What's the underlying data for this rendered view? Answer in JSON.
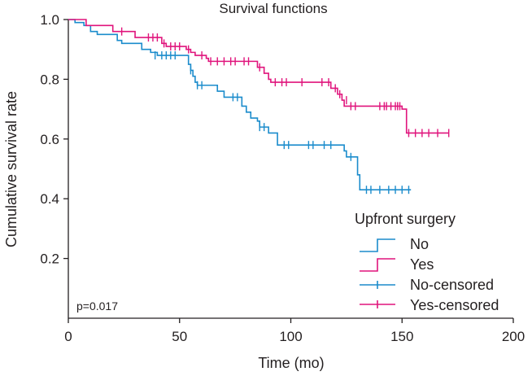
{
  "chart_data": {
    "type": "line",
    "title": "Survival functions",
    "xlabel": "Time (mo)",
    "ylabel": "Cumulative survival rate",
    "xlim": [
      0,
      200
    ],
    "ylim": [
      0,
      1.0
    ],
    "xticks": [
      0,
      50,
      100,
      150,
      200
    ],
    "xtick_labels": [
      "0",
      "50",
      "100",
      "150",
      "200"
    ],
    "yticks": [
      0.2,
      0.4,
      0.6,
      0.8,
      1.0
    ],
    "ytick_labels": [
      "0.2",
      "0.4",
      "0.6",
      "0.8",
      "1.0"
    ],
    "annotation": "p=0.017",
    "legend": {
      "title": "Upfront surgery",
      "position": "bottom-right",
      "entries": [
        "No",
        "Yes",
        "No-censored",
        "Yes-censored"
      ]
    },
    "colors": {
      "no": "#1b8ccc",
      "yes": "#e0147c",
      "axis": "#231f20"
    },
    "series": [
      {
        "name": "No",
        "steps": [
          [
            0,
            1.0
          ],
          [
            3,
            0.99
          ],
          [
            7,
            0.98
          ],
          [
            10,
            0.96
          ],
          [
            13,
            0.95
          ],
          [
            22,
            0.93
          ],
          [
            24,
            0.92
          ],
          [
            33,
            0.9
          ],
          [
            37,
            0.89
          ],
          [
            40,
            0.88
          ],
          [
            54,
            0.85
          ],
          [
            55,
            0.83
          ],
          [
            56,
            0.81
          ],
          [
            57,
            0.79
          ],
          [
            58,
            0.78
          ],
          [
            67,
            0.76
          ],
          [
            70,
            0.74
          ],
          [
            78,
            0.71
          ],
          [
            80,
            0.69
          ],
          [
            82,
            0.67
          ],
          [
            85,
            0.66
          ],
          [
            86,
            0.64
          ],
          [
            90,
            0.62
          ],
          [
            94,
            0.58
          ],
          [
            124,
            0.56
          ],
          [
            125,
            0.54
          ],
          [
            130,
            0.48
          ],
          [
            131,
            0.43
          ],
          [
            154,
            0.43
          ]
        ],
        "censored": [
          [
            39,
            0.88
          ],
          [
            42,
            0.88
          ],
          [
            44,
            0.88
          ],
          [
            46,
            0.88
          ],
          [
            48,
            0.88
          ],
          [
            55,
            0.83
          ],
          [
            58,
            0.78
          ],
          [
            60,
            0.78
          ],
          [
            74,
            0.74
          ],
          [
            76,
            0.74
          ],
          [
            86,
            0.64
          ],
          [
            88,
            0.64
          ],
          [
            97,
            0.58
          ],
          [
            99,
            0.58
          ],
          [
            108,
            0.58
          ],
          [
            110,
            0.58
          ],
          [
            115,
            0.58
          ],
          [
            118,
            0.58
          ],
          [
            127,
            0.54
          ],
          [
            134,
            0.43
          ],
          [
            136,
            0.43
          ],
          [
            140,
            0.43
          ],
          [
            144,
            0.43
          ],
          [
            147,
            0.43
          ],
          [
            150,
            0.43
          ],
          [
            153,
            0.43
          ]
        ]
      },
      {
        "name": "Yes",
        "steps": [
          [
            0,
            1.0
          ],
          [
            8,
            0.98
          ],
          [
            20,
            0.96
          ],
          [
            30,
            0.94
          ],
          [
            42,
            0.92
          ],
          [
            44,
            0.91
          ],
          [
            53,
            0.9
          ],
          [
            55,
            0.89
          ],
          [
            57,
            0.88
          ],
          [
            62,
            0.87
          ],
          [
            63,
            0.86
          ],
          [
            85,
            0.84
          ],
          [
            88,
            0.82
          ],
          [
            90,
            0.8
          ],
          [
            91,
            0.79
          ],
          [
            118,
            0.77
          ],
          [
            121,
            0.75
          ],
          [
            123,
            0.73
          ],
          [
            124,
            0.71
          ],
          [
            150,
            0.7
          ],
          [
            152,
            0.62
          ],
          [
            171,
            0.62
          ]
        ],
        "censored": [
          [
            24,
            0.96
          ],
          [
            36,
            0.94
          ],
          [
            38,
            0.94
          ],
          [
            40,
            0.94
          ],
          [
            43,
            0.92
          ],
          [
            46,
            0.91
          ],
          [
            48,
            0.91
          ],
          [
            50,
            0.91
          ],
          [
            54,
            0.9
          ],
          [
            60,
            0.88
          ],
          [
            64,
            0.86
          ],
          [
            67,
            0.86
          ],
          [
            70,
            0.86
          ],
          [
            73,
            0.86
          ],
          [
            75,
            0.86
          ],
          [
            79,
            0.86
          ],
          [
            81,
            0.86
          ],
          [
            86,
            0.84
          ],
          [
            93,
            0.79
          ],
          [
            96,
            0.79
          ],
          [
            98,
            0.79
          ],
          [
            105,
            0.79
          ],
          [
            114,
            0.79
          ],
          [
            117,
            0.79
          ],
          [
            120,
            0.77
          ],
          [
            122,
            0.75
          ],
          [
            125,
            0.73
          ],
          [
            127,
            0.71
          ],
          [
            129,
            0.71
          ],
          [
            140,
            0.71
          ],
          [
            142,
            0.71
          ],
          [
            143,
            0.71
          ],
          [
            145,
            0.71
          ],
          [
            147,
            0.71
          ],
          [
            148,
            0.71
          ],
          [
            149,
            0.71
          ],
          [
            153,
            0.62
          ],
          [
            156,
            0.62
          ],
          [
            159,
            0.62
          ],
          [
            162,
            0.62
          ],
          [
            166,
            0.62
          ],
          [
            171,
            0.62
          ]
        ]
      }
    ]
  }
}
